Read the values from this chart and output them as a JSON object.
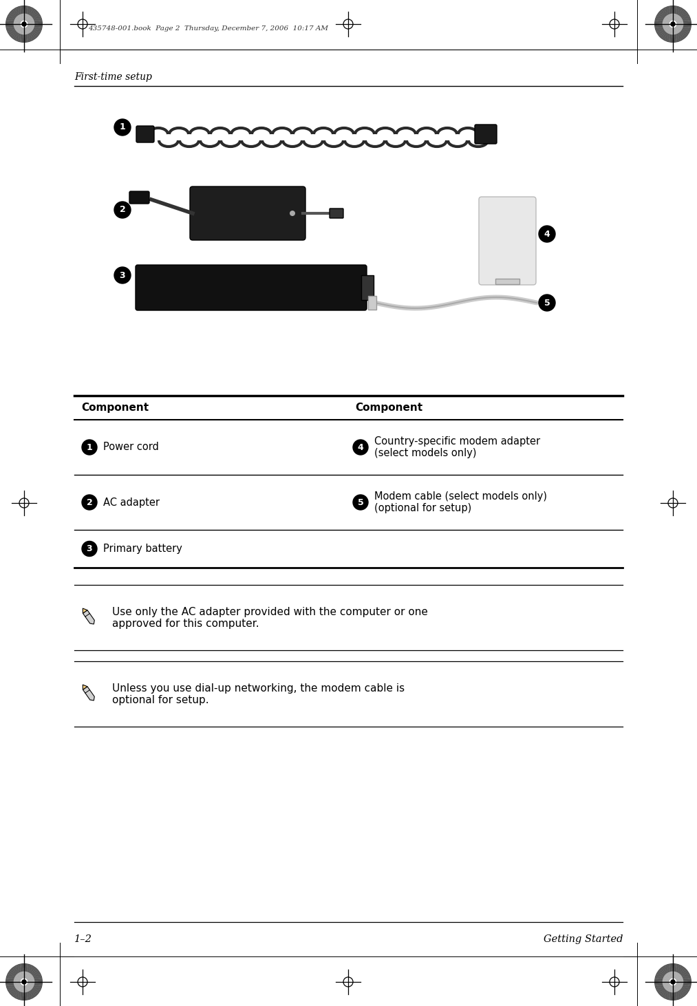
{
  "page_bg": "#ffffff",
  "header_text": "435748-001.book  Page 2  Thursday, December 7, 2006  10:17 AM",
  "section_label": "First-time setup",
  "footer_left": "1–2",
  "footer_right": "Getting Started",
  "table_header_col1": "Component",
  "table_header_col2": "Component",
  "table_rows": [
    {
      "num1": "1",
      "text1": "Power cord",
      "num2": "4",
      "text2": "Country-specific modem adapter\n(select models only)"
    },
    {
      "num1": "2",
      "text1": "AC adapter",
      "num2": "5",
      "text2": "Modem cable (select models only)\n(optional for setup)"
    },
    {
      "num1": "3",
      "text1": "Primary battery",
      "num2": "",
      "text2": ""
    }
  ],
  "note1_text": "Use only the AC adapter provided with the computer or one\napproved for this computer.",
  "note2_text": "Unless you use dial-up networking, the modem cable is\noptional for setup.",
  "text_color": "#000000"
}
